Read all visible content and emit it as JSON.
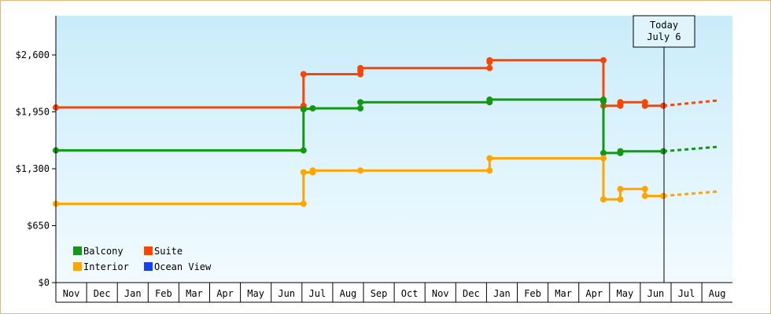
{
  "chart_data": {
    "type": "line",
    "subtype": "step",
    "y_ticks": [
      "$0",
      "$650",
      "$1,300",
      "$1,950",
      "$2,600"
    ],
    "ylim": [
      0,
      2600
    ],
    "x_months": [
      "Nov",
      "Dec",
      "Jan",
      "Feb",
      "Mar",
      "Apr",
      "May",
      "Jun",
      "Jul",
      "Aug",
      "Sep",
      "Oct",
      "Nov",
      "Dec",
      "Jan",
      "Feb",
      "Mar",
      "Apr",
      "May",
      "Jun",
      "Jul",
      "Aug"
    ],
    "today_label": [
      "Today",
      "July 6"
    ],
    "today_x": 19.77,
    "grid": false,
    "legend_position": "bottom-left",
    "series": [
      {
        "name": "Suite",
        "color": "#ff4400",
        "points": [
          [
            0,
            2000
          ],
          [
            8.05,
            2000
          ],
          [
            8.05,
            2020
          ],
          [
            8.05,
            2380
          ],
          [
            8.05,
            2380
          ],
          [
            9.9,
            2380
          ],
          [
            9.9,
            2420
          ],
          [
            9.9,
            2450
          ],
          [
            14.1,
            2450
          ],
          [
            14.1,
            2520
          ],
          [
            14.1,
            2540
          ],
          [
            17.8,
            2540
          ],
          [
            17.8,
            2020
          ],
          [
            17.8,
            2020
          ],
          [
            18.35,
            2020
          ],
          [
            18.35,
            2040
          ],
          [
            18.35,
            2060
          ],
          [
            19.15,
            2060
          ],
          [
            19.15,
            2020
          ],
          [
            19.15,
            2020
          ],
          [
            19.75,
            2020
          ]
        ],
        "forecast": [
          [
            19.75,
            2020
          ],
          [
            21.5,
            2080
          ]
        ]
      },
      {
        "name": "Balcony",
        "color": "#119911",
        "points": [
          [
            0,
            1510
          ],
          [
            8.05,
            1510
          ],
          [
            8.05,
            1980
          ],
          [
            8.05,
            1980
          ],
          [
            8.35,
            1990
          ],
          [
            9.9,
            1990
          ],
          [
            9.9,
            2060
          ],
          [
            9.9,
            2060
          ],
          [
            14.1,
            2060
          ],
          [
            14.1,
            2090
          ],
          [
            14.1,
            2090
          ],
          [
            17.8,
            2090
          ],
          [
            17.8,
            2070
          ],
          [
            17.8,
            1480
          ],
          [
            17.8,
            1480
          ],
          [
            18.35,
            1480
          ],
          [
            18.35,
            1500
          ],
          [
            18.35,
            1500
          ],
          [
            19.75,
            1500
          ]
        ],
        "forecast": [
          [
            19.75,
            1500
          ],
          [
            21.5,
            1550
          ]
        ]
      },
      {
        "name": "Interior",
        "color": "#ffa500",
        "points": [
          [
            0,
            900
          ],
          [
            8.05,
            900
          ],
          [
            8.05,
            1260
          ],
          [
            8.05,
            1260
          ],
          [
            8.35,
            1260
          ],
          [
            8.35,
            1280
          ],
          [
            9.9,
            1280
          ],
          [
            14.1,
            1280
          ],
          [
            14.1,
            1420
          ],
          [
            14.1,
            1420
          ],
          [
            17.8,
            1420
          ],
          [
            17.8,
            950
          ],
          [
            17.8,
            950
          ],
          [
            18.35,
            950
          ],
          [
            18.35,
            1070
          ],
          [
            18.35,
            1070
          ],
          [
            19.15,
            1070
          ],
          [
            19.15,
            990
          ],
          [
            19.15,
            990
          ],
          [
            19.75,
            990
          ]
        ],
        "forecast": [
          [
            19.75,
            990
          ],
          [
            21.5,
            1040
          ]
        ]
      },
      {
        "name": "Ocean View",
        "color": "#1144ee",
        "points": [],
        "forecast": []
      }
    ],
    "legend": [
      {
        "name": "Balcony",
        "color": "#119911"
      },
      {
        "name": "Suite",
        "color": "#ff4400"
      },
      {
        "name": "Interior",
        "color": "#ffa500"
      },
      {
        "name": "Ocean View",
        "color": "#1144ee"
      }
    ]
  }
}
